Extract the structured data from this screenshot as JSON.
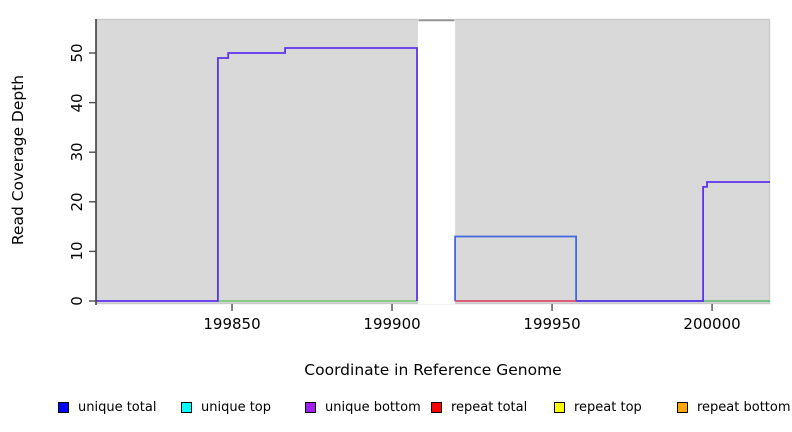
{
  "chart_data": {
    "type": "line",
    "subtype": "step-coverage",
    "title": "",
    "xlabel": "Coordinate in Reference Genome",
    "ylabel": "Read Coverage Depth",
    "x_ticks": [
      199850,
      199900,
      199950,
      200000
    ],
    "y_ticks": [
      0,
      10,
      20,
      30,
      40,
      50
    ],
    "xlim": [
      199807.5,
      200018.1
    ],
    "ylim": [
      -0.605,
      56.855
    ],
    "grid": false,
    "legend_position": "bottom",
    "colors": {
      "plot_background": "#d9d9d9",
      "frame": "#c9c9c9",
      "axis_line": "#404040",
      "tick": "#4d4d4d",
      "text": "#000000"
    },
    "masked_region": {
      "x0": 199908.1,
      "x1": 199919.7,
      "fill": "#ffffff",
      "cap_color": "#949494"
    },
    "series": [
      {
        "id": "unique_total_step",
        "series_label": "unique total",
        "color": "#4169E1",
        "points": [
          [
            199919.7,
            0
          ],
          [
            199919.7,
            13
          ],
          [
            199957.5,
            13
          ],
          [
            199957.5,
            0
          ],
          [
            200018.1,
            0
          ]
        ]
      },
      {
        "id": "repeat_total_baseline",
        "series_label": "repeat total",
        "color": "#DB4B69",
        "points": [
          [
            199919.7,
            0
          ],
          [
            199957.5,
            0
          ]
        ]
      },
      {
        "id": "top_strands_baseline_left",
        "series_label": "unique top / repeat top",
        "color": "#7CC87C",
        "points": [
          [
            199845.6,
            0
          ],
          [
            199907.8,
            0
          ]
        ]
      },
      {
        "id": "top_strands_baseline_right",
        "series_label": "unique top / repeat top",
        "color": "#7CC87C",
        "points": [
          [
            199957.5,
            0
          ],
          [
            200018.1,
            0
          ]
        ]
      },
      {
        "id": "unique_bottom_main",
        "series_label": "unique bottom",
        "color": "#5C33EE",
        "points": [
          [
            199807.5,
            0
          ],
          [
            199845.6,
            0
          ],
          [
            199845.6,
            49
          ],
          [
            199848.8,
            49
          ],
          [
            199848.8,
            50
          ],
          [
            199866.6,
            50
          ],
          [
            199866.6,
            51
          ],
          [
            199907.8,
            51
          ],
          [
            199907.8,
            0
          ]
        ]
      },
      {
        "id": "unique_bottom_right",
        "series_label": "unique bottom",
        "color": "#5C33EE",
        "points": [
          [
            199957.5,
            0
          ],
          [
            199997.2,
            0
          ],
          [
            199997.2,
            23
          ],
          [
            199998.4,
            23
          ],
          [
            199998.4,
            24
          ],
          [
            200018.1,
            24
          ]
        ]
      }
    ],
    "legend": {
      "entries": [
        {
          "label": "unique total",
          "color": "#0000FF"
        },
        {
          "label": "unique top",
          "color": "#00FFFF"
        },
        {
          "label": "unique bottom",
          "color": "#A020F0"
        },
        {
          "label": "repeat total",
          "color": "#FF0000"
        },
        {
          "label": "repeat top",
          "color": "#FFFF00"
        },
        {
          "label": "repeat bottom",
          "color": "#FFA500"
        }
      ]
    }
  }
}
